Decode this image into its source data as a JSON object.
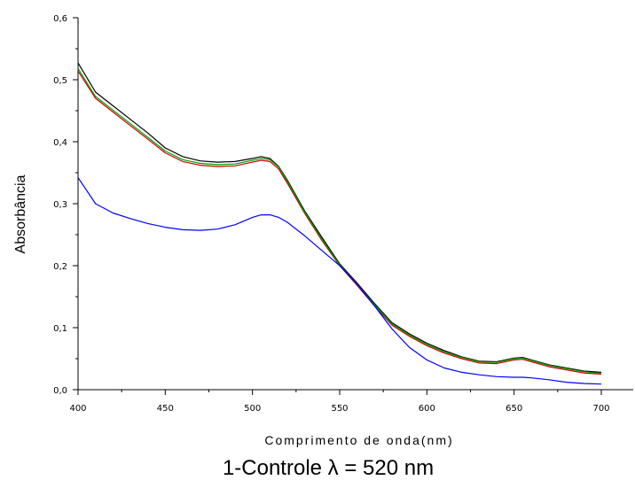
{
  "chart_data": {
    "type": "line",
    "title": "",
    "caption": "1-Controle λ = 520 nm",
    "xlabel": "Comprimento de onda(nm)",
    "ylabel": "Absorbância",
    "xlim": [
      400,
      700
    ],
    "ylim": [
      0.0,
      0.6
    ],
    "x_ticks": [
      400,
      450,
      500,
      550,
      600,
      650,
      700
    ],
    "x_tick_labels": [
      "400",
      "450",
      "500",
      "550",
      "600",
      "650",
      "700"
    ],
    "y_ticks": [
      0.0,
      0.1,
      0.2,
      0.3,
      0.4,
      0.5,
      0.6
    ],
    "y_tick_labels": [
      "0,0",
      "0,1",
      "0,2",
      "0,3",
      "0,4",
      "0,5",
      "0,6"
    ],
    "grid": false,
    "legend": "none",
    "x": [
      400,
      410,
      420,
      430,
      440,
      450,
      460,
      470,
      480,
      490,
      500,
      505,
      510,
      515,
      520,
      530,
      540,
      550,
      560,
      570,
      580,
      590,
      600,
      610,
      620,
      630,
      640,
      650,
      655,
      660,
      670,
      680,
      690,
      700
    ],
    "series": [
      {
        "color": "#000000",
        "values": [
          0.527,
          0.48,
          0.458,
          0.436,
          0.414,
          0.39,
          0.376,
          0.369,
          0.367,
          0.368,
          0.373,
          0.376,
          0.373,
          0.36,
          0.338,
          0.288,
          0.245,
          0.203,
          0.172,
          0.139,
          0.108,
          0.09,
          0.075,
          0.063,
          0.053,
          0.046,
          0.045,
          0.051,
          0.052,
          0.048,
          0.04,
          0.035,
          0.03,
          0.028
        ]
      },
      {
        "color": "#cc0000",
        "values": [
          0.514,
          0.47,
          0.448,
          0.426,
          0.404,
          0.382,
          0.368,
          0.362,
          0.36,
          0.361,
          0.367,
          0.37,
          0.368,
          0.356,
          0.333,
          0.284,
          0.24,
          0.2,
          0.168,
          0.135,
          0.104,
          0.086,
          0.071,
          0.059,
          0.05,
          0.043,
          0.042,
          0.048,
          0.049,
          0.045,
          0.037,
          0.032,
          0.027,
          0.025
        ]
      },
      {
        "color": "#00a000",
        "values": [
          0.518,
          0.473,
          0.451,
          0.429,
          0.407,
          0.385,
          0.371,
          0.365,
          0.363,
          0.364,
          0.37,
          0.373,
          0.371,
          0.359,
          0.336,
          0.286,
          0.242,
          0.201,
          0.17,
          0.137,
          0.106,
          0.088,
          0.073,
          0.061,
          0.052,
          0.045,
          0.044,
          0.05,
          0.051,
          0.047,
          0.039,
          0.034,
          0.029,
          0.026
        ]
      },
      {
        "color": "#0000ff",
        "values": [
          0.342,
          0.3,
          0.285,
          0.276,
          0.268,
          0.262,
          0.258,
          0.257,
          0.259,
          0.266,
          0.278,
          0.282,
          0.282,
          0.278,
          0.27,
          0.248,
          0.224,
          0.2,
          0.17,
          0.135,
          0.098,
          0.068,
          0.048,
          0.035,
          0.028,
          0.024,
          0.021,
          0.02,
          0.02,
          0.019,
          0.016,
          0.012,
          0.01,
          0.009
        ]
      }
    ]
  }
}
